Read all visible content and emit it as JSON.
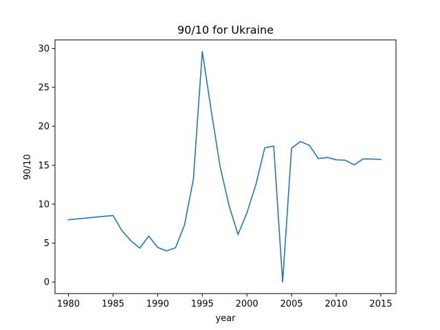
{
  "chart_data": {
    "type": "line",
    "title": "90/10 for Ukraine",
    "xlabel": "year",
    "ylabel": "90/10",
    "xlim": [
      1978.5,
      2016.7
    ],
    "ylim": [
      -1.48,
      31.1
    ],
    "xticks": [
      1980,
      1985,
      1990,
      1995,
      2000,
      2005,
      2010,
      2015
    ],
    "yticks": [
      0,
      5,
      10,
      15,
      20,
      25,
      30
    ],
    "grid": false,
    "series": [
      {
        "color": "#1f77b4",
        "x": [
          1980,
          1985,
          1986,
          1987,
          1988,
          1989,
          1990,
          1991,
          1992,
          1993,
          1994,
          1995,
          1996,
          1997,
          1998,
          1999,
          2000,
          2001,
          2002,
          2003,
          2004,
          2005,
          2006,
          2007,
          2008,
          2009,
          2010,
          2011,
          2012,
          2013,
          2014,
          2015
        ],
        "y": [
          8.0,
          8.55,
          6.6,
          5.3,
          4.35,
          5.9,
          4.45,
          4.0,
          4.4,
          7.3,
          13.2,
          29.6,
          22.0,
          14.8,
          9.8,
          6.1,
          8.9,
          12.5,
          17.25,
          17.45,
          0.0,
          17.2,
          18.05,
          17.55,
          15.85,
          16.0,
          15.7,
          15.65,
          15.05,
          15.8,
          15.8,
          15.75
        ]
      }
    ]
  }
}
